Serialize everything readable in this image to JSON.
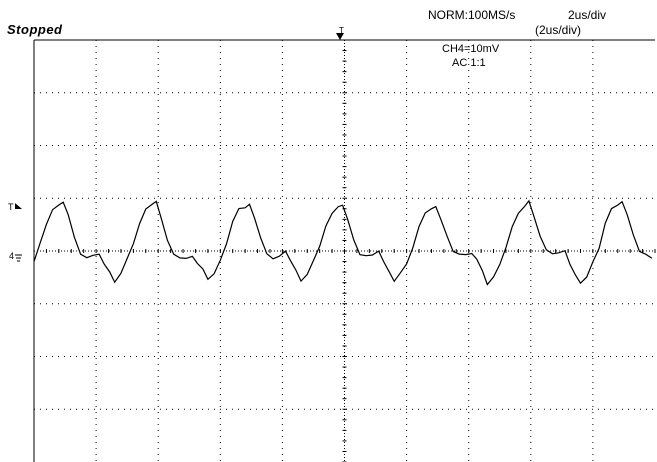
{
  "status": "Stopped",
  "acquisition": "NORM:100MS/s",
  "timebase": "2us/div",
  "timebase_zoom": "(2us/div)",
  "channel_scale": "CH4=10mV",
  "coupling": "AC  1:1",
  "markers": {
    "trigger_position": "T",
    "trigger_level": "T",
    "channel_ground": "4"
  },
  "colors": {
    "trace": "#000000",
    "grid": "#000000",
    "background": "#ffffff"
  },
  "chart_data": {
    "type": "line",
    "grid": true,
    "x_divisions": 10,
    "y_divisions": 8,
    "ylim": [
      -4,
      4
    ],
    "xlim": [
      0,
      10
    ],
    "series": [
      {
        "period_div": 1.5,
        "cycles": 6.5,
        "points": [
          [
            0.0,
            -0.2
          ],
          [
            0.1,
            0.1
          ],
          [
            0.2,
            0.5
          ],
          [
            0.3,
            0.75
          ],
          [
            0.4,
            0.85
          ],
          [
            0.47,
            0.9
          ],
          [
            0.55,
            0.65
          ],
          [
            0.65,
            0.25
          ],
          [
            0.75,
            -0.02
          ],
          [
            0.85,
            -0.1
          ],
          [
            0.95,
            -0.08
          ],
          [
            1.05,
            -0.05
          ],
          [
            1.13,
            -0.2
          ],
          [
            1.22,
            -0.4
          ],
          [
            1.3,
            -0.58
          ],
          [
            1.4,
            -0.45
          ],
          [
            1.5,
            -0.2
          ]
        ]
      }
    ]
  }
}
